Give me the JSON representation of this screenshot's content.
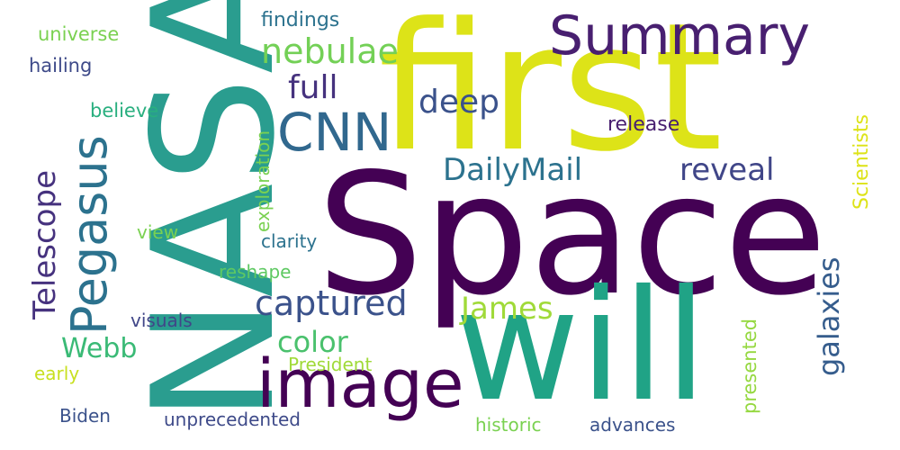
{
  "words": [
    {
      "id": "space",
      "text": "Space",
      "color": "#440154"
    },
    {
      "id": "first",
      "text": "first",
      "color": "#dde318"
    },
    {
      "id": "nasa",
      "text": "NASA",
      "color": "#2a9d8f"
    },
    {
      "id": "will",
      "text": "will",
      "color": "#20a386"
    },
    {
      "id": "image",
      "text": "image",
      "color": "#440154"
    },
    {
      "id": "summary",
      "text": "Summary",
      "color": "#481f70"
    },
    {
      "id": "cnn",
      "text": "CNN",
      "color": "#31688e"
    },
    {
      "id": "pegasus",
      "text": "Pegasus",
      "color": "#2c728e"
    },
    {
      "id": "telescope",
      "text": "Telescope",
      "color": "#46327e"
    },
    {
      "id": "nebulae",
      "text": "nebulae",
      "color": "#73d056"
    },
    {
      "id": "full",
      "text": "full",
      "color": "#46327e"
    },
    {
      "id": "deep",
      "text": "deep",
      "color": "#3b528b"
    },
    {
      "id": "dailymail",
      "text": "DailyMail",
      "color": "#2c728e"
    },
    {
      "id": "reveal",
      "text": "reveal",
      "color": "#404688"
    },
    {
      "id": "captured",
      "text": "captured",
      "color": "#3b528b"
    },
    {
      "id": "james",
      "text": "James",
      "color": "#a0da39"
    },
    {
      "id": "galaxies",
      "text": "galaxies",
      "color": "#365d8d"
    },
    {
      "id": "color",
      "text": "color",
      "color": "#4ac16d"
    },
    {
      "id": "webb",
      "text": "Webb",
      "color": "#3aba76"
    },
    {
      "id": "findings",
      "text": "findings",
      "color": "#2c728e"
    },
    {
      "id": "universe",
      "text": "universe",
      "color": "#7ad151"
    },
    {
      "id": "hailing",
      "text": "hailing",
      "color": "#3e4a89"
    },
    {
      "id": "believe",
      "text": "believe",
      "color": "#29af7f"
    },
    {
      "id": "exploration",
      "text": "exploration",
      "color": "#7ad151"
    },
    {
      "id": "release",
      "text": "release",
      "color": "#481f70"
    },
    {
      "id": "scientists",
      "text": "Scientists",
      "color": "#dde318"
    },
    {
      "id": "view",
      "text": "view",
      "color": "#7ad151"
    },
    {
      "id": "clarity",
      "text": "clarity",
      "color": "#2c728e"
    },
    {
      "id": "reshape",
      "text": "reshape",
      "color": "#5ec962"
    },
    {
      "id": "visuals",
      "text": "visuals",
      "color": "#404688"
    },
    {
      "id": "presented",
      "text": "presented",
      "color": "#95d840"
    },
    {
      "id": "president",
      "text": "President",
      "color": "#a0da39"
    },
    {
      "id": "early",
      "text": "early",
      "color": "#c8e020"
    },
    {
      "id": "biden",
      "text": "Biden",
      "color": "#3b528b"
    },
    {
      "id": "unprecedented",
      "text": "unprecedented",
      "color": "#3e4a89"
    },
    {
      "id": "historic",
      "text": "historic",
      "color": "#7ad151"
    },
    {
      "id": "advances",
      "text": "advances",
      "color": "#3b528b"
    }
  ]
}
